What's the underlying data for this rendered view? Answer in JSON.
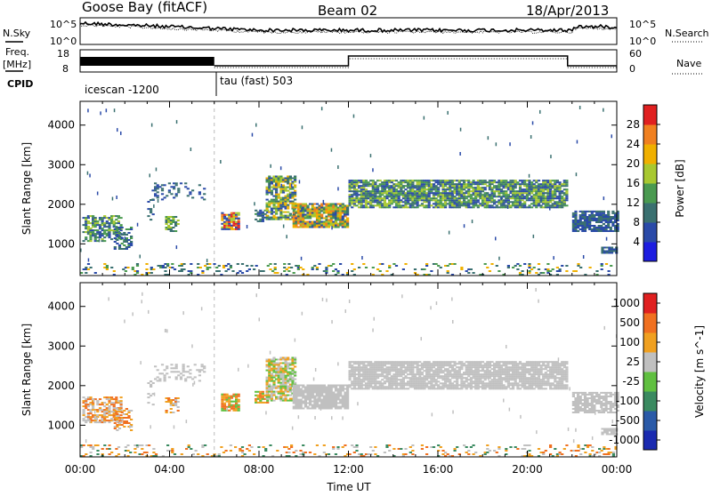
{
  "header": {
    "station": "Goose Bay (fitACF)",
    "beam": "Beam 02",
    "date": "18/Apr/2013"
  },
  "left_labels": {
    "nsky": "N.Sky",
    "freq_line1": "Freq.",
    "freq_line2": "[MHz]",
    "cpid": "CPID"
  },
  "right_labels": {
    "nsearch": "N.Search",
    "nave": "Nave"
  },
  "noise_axis": {
    "left_ticks": [
      "10^5",
      "10^0"
    ],
    "right_ticks": [
      "10^5",
      "10^0"
    ]
  },
  "freq_axis": {
    "left_ticks": [
      "18",
      "8"
    ],
    "right_ticks": [
      "60",
      "0"
    ]
  },
  "cpid_segments": [
    {
      "label": "icescan -1200",
      "start": 0,
      "end": 6
    },
    {
      "label": "tau (fast) 503",
      "start": 6,
      "end": 24
    }
  ],
  "chart_data": [
    {
      "type": "heatmap",
      "name": "power",
      "ylabel": "Slant Range [km]",
      "xlabel": "",
      "xlim": [
        0,
        24
      ],
      "ylim": [
        200,
        4600
      ],
      "y_ticks": [
        1000,
        2000,
        3000,
        4000
      ],
      "colorbar": {
        "label": "Power [dB]",
        "ticks": [
          "4",
          "8",
          "12",
          "16",
          "20",
          "24",
          "28"
        ],
        "colors": [
          "#1d1de0",
          "#2a4aa8",
          "#3a7070",
          "#4a9a50",
          "#a8c830",
          "#f0b000",
          "#f08020",
          "#e02020"
        ]
      }
    },
    {
      "type": "heatmap",
      "name": "velocity",
      "ylabel": "Slant Range [km]",
      "xlabel": "Time UT",
      "xlim": [
        0,
        24
      ],
      "ylim": [
        200,
        4600
      ],
      "y_ticks": [
        1000,
        2000,
        3000,
        4000
      ],
      "x_ticks": [
        "00:00",
        "04:00",
        "08:00",
        "12:00",
        "16:00",
        "20:00",
        "00:00"
      ],
      "colorbar": {
        "label": "Velocity [m s^-1]",
        "ticks": [
          "1000",
          "500",
          "100",
          "25",
          "-25",
          "-100",
          "-500",
          "-1000"
        ],
        "colors": [
          "#1a2ab0",
          "#2a5aa8",
          "#3a8a60",
          "#60c040",
          "#c0c0c0",
          "#f0a020",
          "#f07020",
          "#e02020"
        ]
      }
    }
  ]
}
